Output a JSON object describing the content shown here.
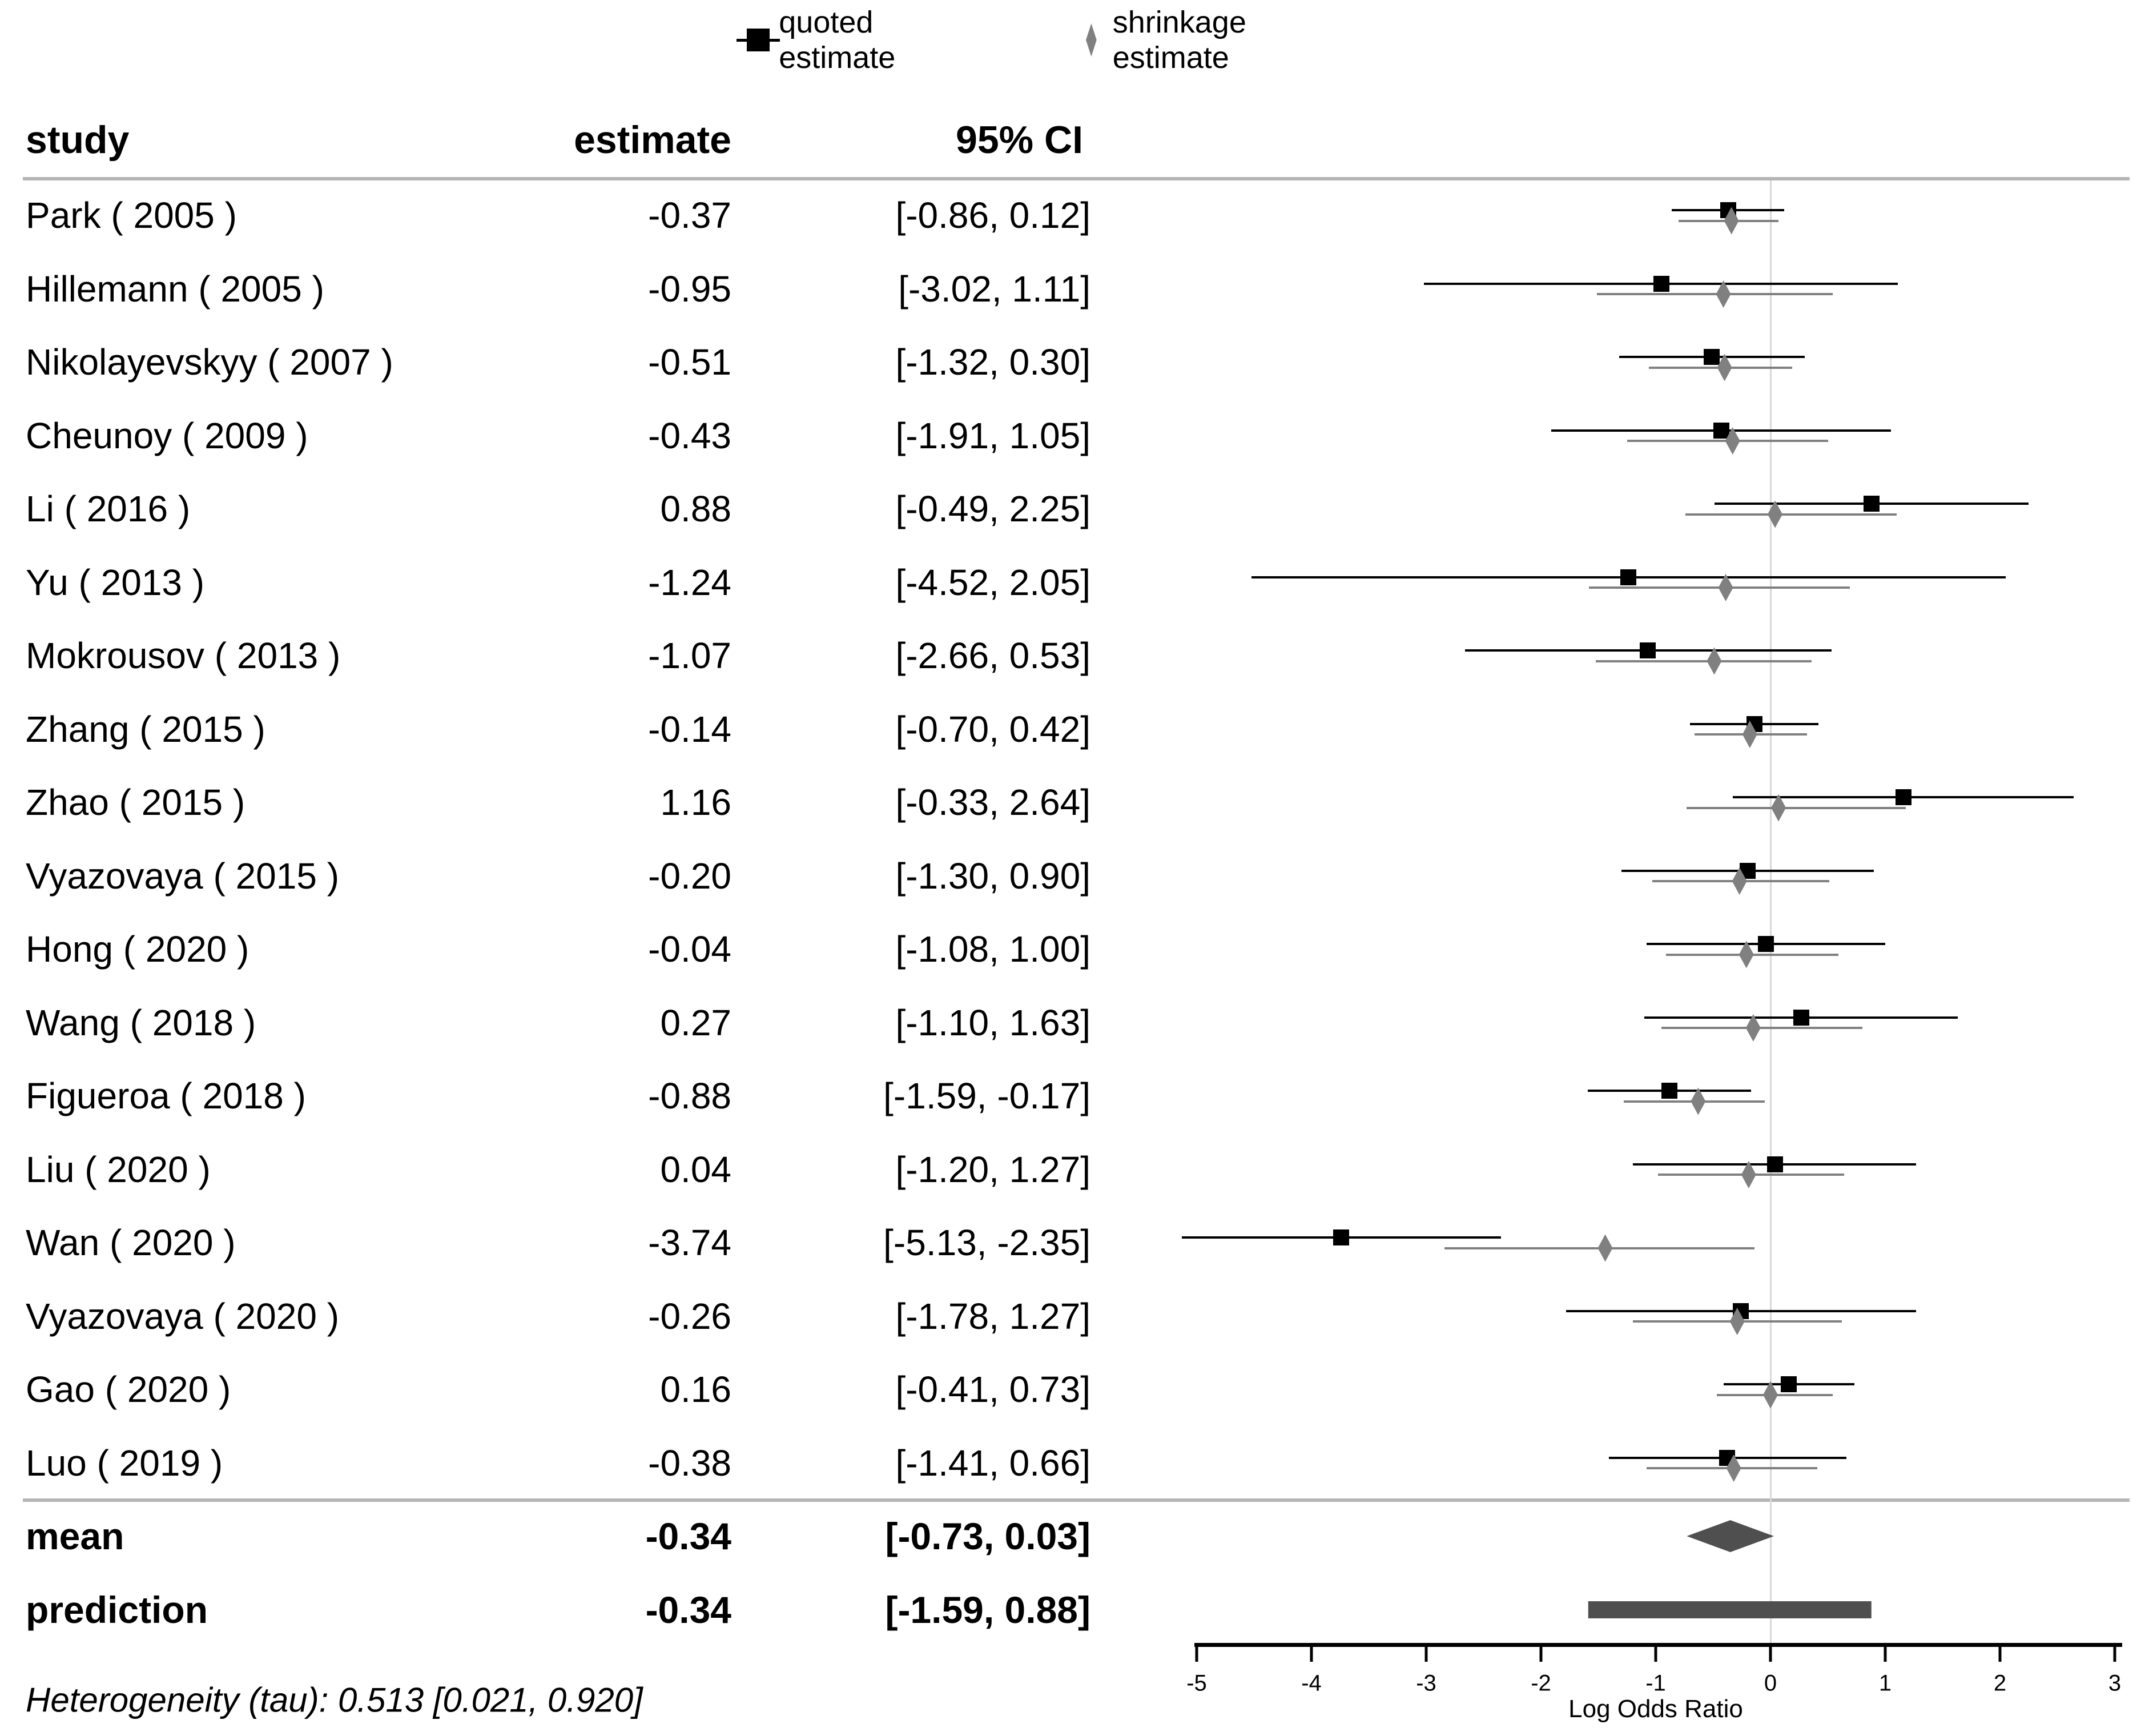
{
  "legend": {
    "quoted_label": "quoted estimate",
    "shrinkage_label": "shrinkage estimate"
  },
  "table_headers": {
    "study": "study",
    "estimate": "estimate",
    "ci": "95% CI"
  },
  "heterogeneity_note": "Heterogeneity (tau): 0.513 [0.021, 0.920]",
  "axis": {
    "label": "Log Odds Ratio",
    "ticks": [
      -5,
      -4,
      -3,
      -2,
      -1,
      0,
      1,
      2,
      3
    ]
  },
  "colors": {
    "quoted": "#000000",
    "shrinkage": "#808080",
    "summary": "#4f4f4f",
    "reference_line": "#d8d8d8",
    "separator": "#b5b5b5"
  },
  "chart_data": {
    "type": "forest",
    "xlabel": "Log Odds Ratio",
    "xlim": [
      -5,
      3
    ],
    "reference_value": 0,
    "series_names": [
      "quoted estimate",
      "shrinkage estimate"
    ],
    "studies": [
      {
        "study": "Park ( 2005 )",
        "estimate_text": "-0.37",
        "ci_text": "[-0.86, 0.12]",
        "quoted": [
          -0.37,
          -0.86,
          0.12
        ],
        "shrinkage": [
          -0.34,
          -0.8,
          0.07
        ]
      },
      {
        "study": "Hillemann ( 2005 )",
        "estimate_text": "-0.95",
        "ci_text": "[-3.02, 1.11]",
        "quoted": [
          -0.95,
          -3.02,
          1.11
        ],
        "shrinkage": [
          -0.41,
          -1.51,
          0.54
        ]
      },
      {
        "study": "Nikolayevskyy ( 2007 )",
        "estimate_text": "-0.51",
        "ci_text": "[-1.32, 0.30]",
        "quoted": [
          -0.51,
          -1.32,
          0.3
        ],
        "shrinkage": [
          -0.4,
          -1.06,
          0.19
        ]
      },
      {
        "study": "Cheunoy ( 2009 )",
        "estimate_text": "-0.43",
        "ci_text": "[-1.91, 1.05]",
        "quoted": [
          -0.43,
          -1.91,
          1.05
        ],
        "shrinkage": [
          -0.33,
          -1.25,
          0.5
        ]
      },
      {
        "study": "Li ( 2016 )",
        "estimate_text": "0.88",
        "ci_text": "[-0.49, 2.25]",
        "quoted": [
          0.88,
          -0.49,
          2.25
        ],
        "shrinkage": [
          0.04,
          -0.74,
          1.1
        ]
      },
      {
        "study": "Yu ( 2013 )",
        "estimate_text": "-1.24",
        "ci_text": "[-4.52, 2.05]",
        "quoted": [
          -1.24,
          -4.52,
          2.05
        ],
        "shrinkage": [
          -0.39,
          -1.58,
          0.69
        ]
      },
      {
        "study": "Mokrousov ( 2013 )",
        "estimate_text": "-1.07",
        "ci_text": "[-2.66, 0.53]",
        "quoted": [
          -1.07,
          -2.66,
          0.53
        ],
        "shrinkage": [
          -0.49,
          -1.52,
          0.36
        ]
      },
      {
        "study": "Zhang ( 2015 )",
        "estimate_text": "-0.14",
        "ci_text": "[-0.70, 0.42]",
        "quoted": [
          -0.14,
          -0.7,
          0.42
        ],
        "shrinkage": [
          -0.18,
          -0.66,
          0.32
        ]
      },
      {
        "study": "Zhao ( 2015 )",
        "estimate_text": "1.16",
        "ci_text": "[-0.33, 2.64]",
        "quoted": [
          1.16,
          -0.33,
          2.64
        ],
        "shrinkage": [
          0.07,
          -0.73,
          1.18
        ]
      },
      {
        "study": "Vyazovaya ( 2015 )",
        "estimate_text": "-0.20",
        "ci_text": "[-1.30, 0.90]",
        "quoted": [
          -0.2,
          -1.3,
          0.9
        ],
        "shrinkage": [
          -0.27,
          -1.03,
          0.51
        ]
      },
      {
        "study": "Hong ( 2020 )",
        "estimate_text": "-0.04",
        "ci_text": "[-1.08, 1.00]",
        "quoted": [
          -0.04,
          -1.08,
          1.0
        ],
        "shrinkage": [
          -0.21,
          -0.91,
          0.59
        ]
      },
      {
        "study": "Wang ( 2018 )",
        "estimate_text": "0.27",
        "ci_text": "[-1.10, 1.63]",
        "quoted": [
          0.27,
          -1.1,
          1.63
        ],
        "shrinkage": [
          -0.15,
          -0.95,
          0.8
        ]
      },
      {
        "study": "Figueroa ( 2018 )",
        "estimate_text": "-0.88",
        "ci_text": "[-1.59, -0.17]",
        "quoted": [
          -0.88,
          -1.59,
          -0.17
        ],
        "shrinkage": [
          -0.63,
          -1.28,
          -0.05
        ]
      },
      {
        "study": "Liu ( 2020 )",
        "estimate_text": "0.04",
        "ci_text": "[-1.20, 1.27]",
        "quoted": [
          0.04,
          -1.2,
          1.27
        ],
        "shrinkage": [
          -0.19,
          -0.98,
          0.64
        ]
      },
      {
        "study": "Wan ( 2020 )",
        "estimate_text": "-3.74",
        "ci_text": "[-5.13, -2.35]",
        "quoted": [
          -3.74,
          -5.13,
          -2.35
        ],
        "shrinkage": [
          -1.44,
          -2.84,
          -0.14
        ]
      },
      {
        "study": "Vyazovaya ( 2020 )",
        "estimate_text": "-0.26",
        "ci_text": "[-1.78, 1.27]",
        "quoted": [
          -0.26,
          -1.78,
          1.27
        ],
        "shrinkage": [
          -0.29,
          -1.2,
          0.62
        ]
      },
      {
        "study": "Gao ( 2020 )",
        "estimate_text": "0.16",
        "ci_text": "[-0.41, 0.73]",
        "quoted": [
          0.16,
          -0.41,
          0.73
        ],
        "shrinkage": [
          0.0,
          -0.47,
          0.54
        ]
      },
      {
        "study": "Luo ( 2019 )",
        "estimate_text": "-0.38",
        "ci_text": "[-1.41, 0.66]",
        "quoted": [
          -0.38,
          -1.41,
          0.66
        ],
        "shrinkage": [
          -0.32,
          -1.08,
          0.41
        ]
      }
    ],
    "mean": {
      "label": "mean",
      "estimate_text": "-0.34",
      "ci_text": "[-0.73, 0.03]",
      "est": -0.34,
      "lo": -0.73,
      "hi": 0.03
    },
    "prediction": {
      "label": "prediction",
      "estimate_text": "-0.34",
      "ci_text": "[-1.59, 0.88]",
      "est": -0.34,
      "lo": -1.59,
      "hi": 0.88
    },
    "heterogeneity": {
      "tau": 0.513,
      "tau_ci": [
        0.021,
        0.92
      ]
    }
  }
}
